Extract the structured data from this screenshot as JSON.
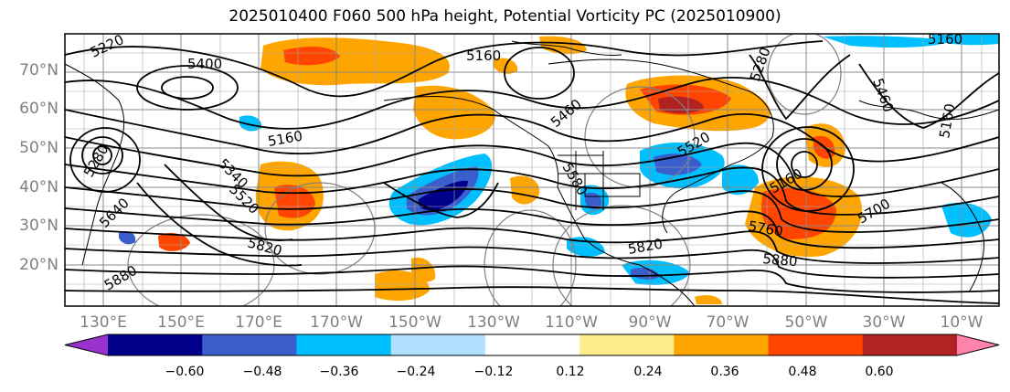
{
  "title": "2025010400 F060 500 hPa height, Potential Vorticity PC (2025010900)",
  "latitude_labels": [
    "70°N",
    "60°N",
    "50°N",
    "40°N",
    "30°N",
    "20°N"
  ],
  "longitude_labels": [
    "130°E",
    "150°E",
    "170°E",
    "170°W",
    "150°W",
    "130°W",
    "110°W",
    "90°W",
    "70°W",
    "50°W",
    "30°W",
    "10°W"
  ],
  "contour_labels": [
    "5220",
    "5400",
    "5160",
    "5280",
    "5160",
    "5340",
    "5520",
    "5640",
    "5820",
    "5880",
    "5160",
    "5460",
    "5580",
    "5520",
    "5820",
    "5760",
    "5880",
    "5700",
    "5460",
    "5160",
    "5280",
    "5160"
  ],
  "colorbar": {
    "labels": [
      "−0.60",
      "−0.48",
      "−0.36",
      "−0.24",
      "−0.12",
      "0.12",
      "0.24",
      "0.36",
      "0.48",
      "0.60"
    ],
    "colors": [
      "#9932cc",
      "#00008b",
      "#3a5fcd",
      "#00bfff",
      "#b0e2ff",
      "#ffffff",
      "#ffec8b",
      "#ffa500",
      "#ff4500",
      "#b22222",
      "#ff82ab"
    ]
  },
  "colors": {
    "neg_strong": "#00008b",
    "neg_mid": "#3a5fcd",
    "neg_light": "#00bfff",
    "pos_light": "#ffa500",
    "pos_mid": "#ff4500",
    "pos_strong": "#b22222"
  }
}
